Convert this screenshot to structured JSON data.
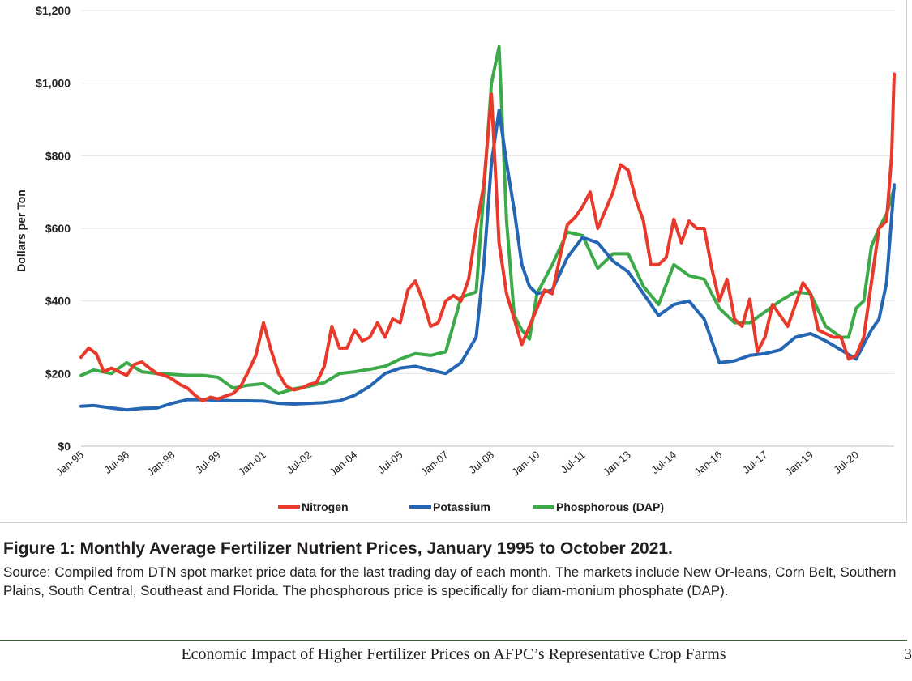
{
  "caption": {
    "title": "Figure 1: Monthly Average Fertilizer Nutrient Prices, January 1995 to October 2021.",
    "source": "Source: Compiled from DTN spot market price data for the last trading day of each month.  The markets include New Or-leans, Corn Belt, Southern Plains, South Central, Southeast and Florida.  The phosphorous price is specifically for diam-monium phosphate (DAP)."
  },
  "footer": {
    "text": "Economic Impact of Higher Fertilizer Prices on AFPC’s Representative Crop Farms",
    "page_number": "3"
  },
  "chart_data": {
    "type": "line",
    "title": "",
    "ylabel": "Dollars per Ton",
    "xlabel": "",
    "ylim": [
      0,
      1200
    ],
    "y_ticks": [
      0,
      200,
      400,
      600,
      800,
      1000,
      1200
    ],
    "y_tick_labels": [
      "$0",
      "$200",
      "$400",
      "$600",
      "$800",
      "$1,000",
      "$1,200"
    ],
    "x_range": [
      "1995-01",
      "2021-10"
    ],
    "x_tick_labels": [
      {
        "date": "1995-01",
        "label": "Jan-95"
      },
      {
        "date": "1996-07",
        "label": "Jul-96"
      },
      {
        "date": "1998-01",
        "label": "Jan-98"
      },
      {
        "date": "1999-07",
        "label": "Jul-99"
      },
      {
        "date": "2001-01",
        "label": "Jan-01"
      },
      {
        "date": "2002-07",
        "label": "Jul-02"
      },
      {
        "date": "2004-01",
        "label": "Jan-04"
      },
      {
        "date": "2005-07",
        "label": "Jul-05"
      },
      {
        "date": "2007-01",
        "label": "Jan-07"
      },
      {
        "date": "2008-07",
        "label": "Jul-08"
      },
      {
        "date": "2010-01",
        "label": "Jan-10"
      },
      {
        "date": "2011-07",
        "label": "Jul-11"
      },
      {
        "date": "2013-01",
        "label": "Jan-13"
      },
      {
        "date": "2014-07",
        "label": "Jul-14"
      },
      {
        "date": "2016-01",
        "label": "Jan-16"
      },
      {
        "date": "2017-07",
        "label": "Jul-17"
      },
      {
        "date": "2019-01",
        "label": "Jan-19"
      },
      {
        "date": "2020-07",
        "label": "Jul-20"
      }
    ],
    "grid": "horizontal",
    "legend_position": "bottom",
    "series": [
      {
        "name": "Nitrogen",
        "color": "#e8392a",
        "points": [
          [
            "1995-01",
            245
          ],
          [
            "1995-04",
            270
          ],
          [
            "1995-07",
            255
          ],
          [
            "1995-10",
            205
          ],
          [
            "1996-01",
            215
          ],
          [
            "1996-04",
            205
          ],
          [
            "1996-07",
            195
          ],
          [
            "1996-10",
            225
          ],
          [
            "1997-01",
            232
          ],
          [
            "1997-04",
            215
          ],
          [
            "1997-07",
            200
          ],
          [
            "1997-10",
            195
          ],
          [
            "1998-01",
            185
          ],
          [
            "1998-04",
            170
          ],
          [
            "1998-07",
            160
          ],
          [
            "1998-10",
            140
          ],
          [
            "1999-01",
            125
          ],
          [
            "1999-04",
            135
          ],
          [
            "1999-07",
            130
          ],
          [
            "1999-10",
            138
          ],
          [
            "2000-01",
            145
          ],
          [
            "2000-04",
            165
          ],
          [
            "2000-07",
            205
          ],
          [
            "2000-10",
            250
          ],
          [
            "2001-01",
            340
          ],
          [
            "2001-04",
            265
          ],
          [
            "2001-07",
            200
          ],
          [
            "2001-10",
            165
          ],
          [
            "2002-01",
            155
          ],
          [
            "2002-04",
            160
          ],
          [
            "2002-07",
            170
          ],
          [
            "2002-10",
            175
          ],
          [
            "2003-01",
            220
          ],
          [
            "2003-04",
            330
          ],
          [
            "2003-07",
            270
          ],
          [
            "2003-10",
            270
          ],
          [
            "2004-01",
            320
          ],
          [
            "2004-04",
            290
          ],
          [
            "2004-07",
            300
          ],
          [
            "2004-10",
            340
          ],
          [
            "2005-01",
            300
          ],
          [
            "2005-04",
            350
          ],
          [
            "2005-07",
            340
          ],
          [
            "2005-10",
            430
          ],
          [
            "2006-01",
            455
          ],
          [
            "2006-04",
            400
          ],
          [
            "2006-07",
            330
          ],
          [
            "2006-10",
            340
          ],
          [
            "2007-01",
            400
          ],
          [
            "2007-04",
            415
          ],
          [
            "2007-07",
            400
          ],
          [
            "2007-10",
            460
          ],
          [
            "2008-01",
            600
          ],
          [
            "2008-04",
            720
          ],
          [
            "2008-07",
            970
          ],
          [
            "2008-10",
            560
          ],
          [
            "2009-01",
            420
          ],
          [
            "2009-04",
            350
          ],
          [
            "2009-07",
            280
          ],
          [
            "2009-10",
            330
          ],
          [
            "2010-01",
            380
          ],
          [
            "2010-04",
            430
          ],
          [
            "2010-07",
            420
          ],
          [
            "2010-10",
            520
          ],
          [
            "2011-01",
            610
          ],
          [
            "2011-04",
            630
          ],
          [
            "2011-07",
            660
          ],
          [
            "2011-10",
            700
          ],
          [
            "2012-01",
            600
          ],
          [
            "2012-04",
            650
          ],
          [
            "2012-07",
            700
          ],
          [
            "2012-10",
            775
          ],
          [
            "2013-01",
            760
          ],
          [
            "2013-04",
            680
          ],
          [
            "2013-07",
            620
          ],
          [
            "2013-10",
            500
          ],
          [
            "2014-01",
            500
          ],
          [
            "2014-04",
            520
          ],
          [
            "2014-07",
            625
          ],
          [
            "2014-10",
            560
          ],
          [
            "2015-01",
            620
          ],
          [
            "2015-04",
            600
          ],
          [
            "2015-07",
            600
          ],
          [
            "2015-10",
            490
          ],
          [
            "2016-01",
            400
          ],
          [
            "2016-04",
            460
          ],
          [
            "2016-07",
            350
          ],
          [
            "2016-10",
            330
          ],
          [
            "2017-01",
            405
          ],
          [
            "2017-04",
            260
          ],
          [
            "2017-07",
            300
          ],
          [
            "2017-10",
            390
          ],
          [
            "2018-01",
            360
          ],
          [
            "2018-04",
            330
          ],
          [
            "2018-07",
            390
          ],
          [
            "2018-10",
            450
          ],
          [
            "2019-01",
            420
          ],
          [
            "2019-04",
            320
          ],
          [
            "2019-07",
            310
          ],
          [
            "2019-10",
            300
          ],
          [
            "2020-01",
            300
          ],
          [
            "2020-04",
            240
          ],
          [
            "2020-07",
            250
          ],
          [
            "2020-10",
            300
          ],
          [
            "2021-01",
            450
          ],
          [
            "2021-04",
            600
          ],
          [
            "2021-07",
            620
          ],
          [
            "2021-09",
            800
          ],
          [
            "2021-10",
            1025
          ]
        ]
      },
      {
        "name": "Potassium",
        "color": "#2466b3",
        "points": [
          [
            "1995-01",
            110
          ],
          [
            "1995-06",
            112
          ],
          [
            "1996-01",
            105
          ],
          [
            "1996-07",
            100
          ],
          [
            "1997-01",
            104
          ],
          [
            "1997-07",
            105
          ],
          [
            "1998-01",
            118
          ],
          [
            "1998-07",
            128
          ],
          [
            "1999-01",
            128
          ],
          [
            "1999-07",
            127
          ],
          [
            "2000-01",
            125
          ],
          [
            "2000-07",
            125
          ],
          [
            "2001-01",
            124
          ],
          [
            "2001-07",
            118
          ],
          [
            "2002-01",
            116
          ],
          [
            "2002-07",
            118
          ],
          [
            "2003-01",
            120
          ],
          [
            "2003-07",
            125
          ],
          [
            "2004-01",
            140
          ],
          [
            "2004-07",
            165
          ],
          [
            "2005-01",
            200
          ],
          [
            "2005-07",
            215
          ],
          [
            "2006-01",
            220
          ],
          [
            "2006-07",
            210
          ],
          [
            "2007-01",
            200
          ],
          [
            "2007-07",
            230
          ],
          [
            "2008-01",
            300
          ],
          [
            "2008-04",
            500
          ],
          [
            "2008-07",
            780
          ],
          [
            "2008-10",
            925
          ],
          [
            "2009-01",
            780
          ],
          [
            "2009-04",
            650
          ],
          [
            "2009-07",
            500
          ],
          [
            "2009-10",
            440
          ],
          [
            "2010-01",
            420
          ],
          [
            "2010-07",
            430
          ],
          [
            "2011-01",
            520
          ],
          [
            "2011-07",
            575
          ],
          [
            "2012-01",
            560
          ],
          [
            "2012-07",
            510
          ],
          [
            "2013-01",
            480
          ],
          [
            "2013-07",
            420
          ],
          [
            "2014-01",
            360
          ],
          [
            "2014-07",
            390
          ],
          [
            "2015-01",
            400
          ],
          [
            "2015-07",
            350
          ],
          [
            "2016-01",
            230
          ],
          [
            "2016-07",
            235
          ],
          [
            "2017-01",
            250
          ],
          [
            "2017-07",
            255
          ],
          [
            "2018-01",
            265
          ],
          [
            "2018-07",
            300
          ],
          [
            "2019-01",
            310
          ],
          [
            "2019-07",
            290
          ],
          [
            "2020-01",
            265
          ],
          [
            "2020-07",
            240
          ],
          [
            "2021-01",
            320
          ],
          [
            "2021-04",
            350
          ],
          [
            "2021-07",
            450
          ],
          [
            "2021-10",
            720
          ]
        ]
      },
      {
        "name": "Phosphorous (DAP)",
        "color": "#3daa4a",
        "points": [
          [
            "1995-01",
            195
          ],
          [
            "1995-06",
            210
          ],
          [
            "1996-01",
            200
          ],
          [
            "1996-07",
            230
          ],
          [
            "1997-01",
            205
          ],
          [
            "1997-07",
            200
          ],
          [
            "1998-01",
            198
          ],
          [
            "1998-07",
            195
          ],
          [
            "1999-01",
            195
          ],
          [
            "1999-07",
            190
          ],
          [
            "2000-01",
            160
          ],
          [
            "2000-07",
            168
          ],
          [
            "2001-01",
            172
          ],
          [
            "2001-07",
            145
          ],
          [
            "2002-01",
            158
          ],
          [
            "2002-07",
            165
          ],
          [
            "2003-01",
            175
          ],
          [
            "2003-07",
            200
          ],
          [
            "2004-01",
            205
          ],
          [
            "2004-07",
            212
          ],
          [
            "2005-01",
            220
          ],
          [
            "2005-07",
            240
          ],
          [
            "2006-01",
            255
          ],
          [
            "2006-07",
            250
          ],
          [
            "2007-01",
            260
          ],
          [
            "2007-07",
            410
          ],
          [
            "2008-01",
            425
          ],
          [
            "2008-04",
            700
          ],
          [
            "2008-07",
            1000
          ],
          [
            "2008-10",
            1100
          ],
          [
            "2009-01",
            620
          ],
          [
            "2009-04",
            360
          ],
          [
            "2009-07",
            320
          ],
          [
            "2009-10",
            295
          ],
          [
            "2010-01",
            420
          ],
          [
            "2010-07",
            500
          ],
          [
            "2011-01",
            590
          ],
          [
            "2011-07",
            580
          ],
          [
            "2012-01",
            490
          ],
          [
            "2012-07",
            530
          ],
          [
            "2013-01",
            530
          ],
          [
            "2013-07",
            440
          ],
          [
            "2014-01",
            390
          ],
          [
            "2014-07",
            500
          ],
          [
            "2015-01",
            470
          ],
          [
            "2015-07",
            460
          ],
          [
            "2016-01",
            380
          ],
          [
            "2016-07",
            340
          ],
          [
            "2017-01",
            340
          ],
          [
            "2017-07",
            370
          ],
          [
            "2018-01",
            400
          ],
          [
            "2018-07",
            425
          ],
          [
            "2019-01",
            420
          ],
          [
            "2019-07",
            330
          ],
          [
            "2020-01",
            300
          ],
          [
            "2020-04",
            300
          ],
          [
            "2020-07",
            380
          ],
          [
            "2020-10",
            400
          ],
          [
            "2021-01",
            550
          ],
          [
            "2021-04",
            600
          ],
          [
            "2021-07",
            640
          ],
          [
            "2021-10",
            710
          ]
        ]
      }
    ]
  }
}
